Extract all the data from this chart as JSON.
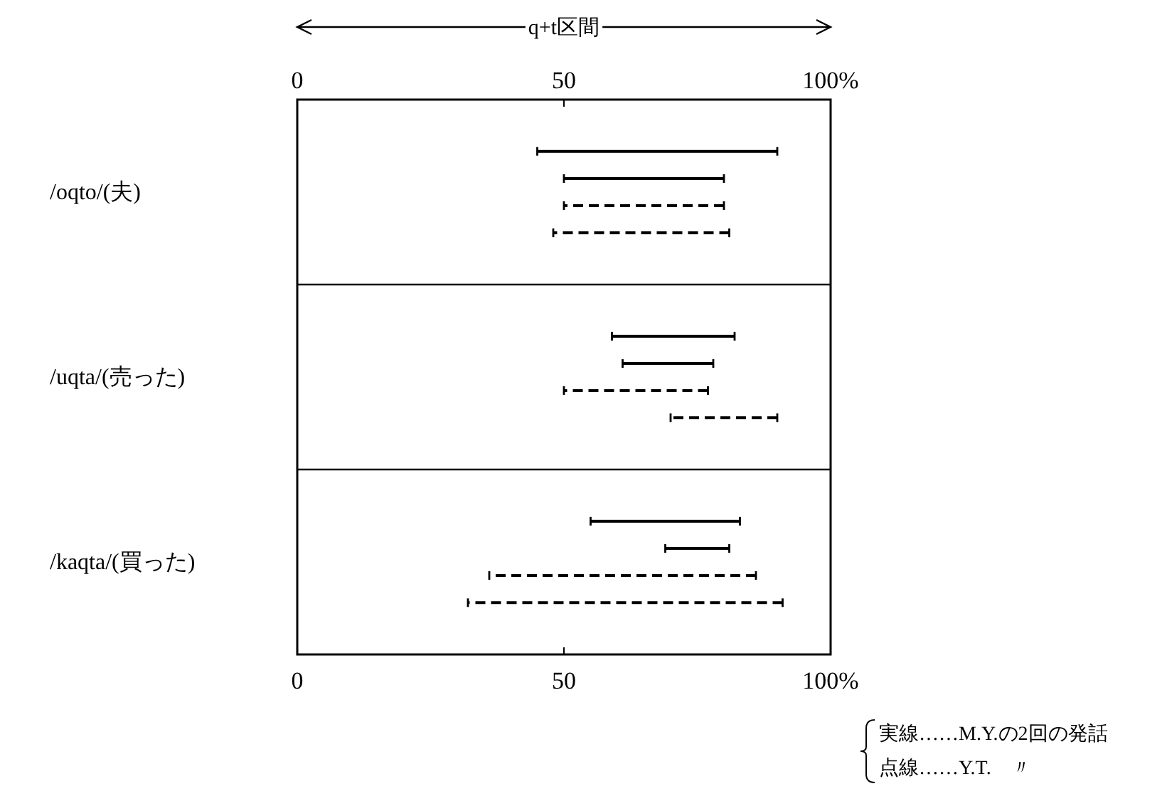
{
  "chart_data": {
    "type": "bar",
    "orientation": "horizontal",
    "xlabel": "q+t区間",
    "categories": [
      "/oqto/(夫)",
      "/uqta/(売った)",
      "/kaqta/(買った)"
    ],
    "series": [
      {
        "color": "#000000",
        "line_style": "solid",
        "base": [
          45,
          59,
          55
        ],
        "values": [
          45,
          23,
          28
        ]
      },
      {
        "color": "#000000",
        "line_style": "solid",
        "base": [
          50,
          61,
          69
        ],
        "values": [
          30,
          17,
          12
        ]
      },
      {
        "color": "#000000",
        "line_style": "dashed",
        "base": [
          50,
          50,
          36
        ],
        "values": [
          30,
          27,
          50
        ]
      },
      {
        "color": "#000000",
        "line_style": "dashed",
        "base": [
          48,
          70,
          32
        ],
        "values": [
          33,
          20,
          59
        ]
      }
    ],
    "xlim": [
      0,
      100
    ],
    "xticks": [
      0,
      50,
      {
        "value": 100,
        "label": "100%"
      }
    ],
    "x2lim": [
      0,
      100
    ],
    "x2ticks": [
      0,
      50,
      {
        "value": 100,
        "label": "100%"
      }
    ],
    "annotations": [
      "実線……M.Y.の2回の発話",
      "点線……Y.T.　〃"
    ]
  }
}
